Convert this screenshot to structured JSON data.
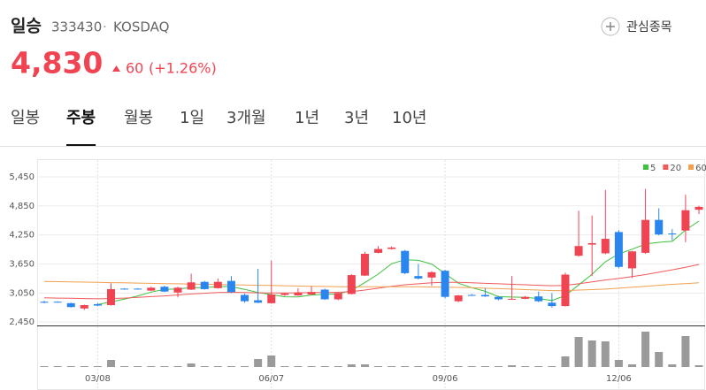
{
  "header": {
    "name": "일승",
    "code": "333430",
    "separator": "·",
    "market": "KOSDAQ",
    "watch": "관심종목",
    "price": "4,830",
    "change": "60",
    "change_pct": "(+1.26%)"
  },
  "tabs": [
    "일봉",
    "주봉",
    "월봉",
    "1일",
    "3개월",
    "1년",
    "3년",
    "10년"
  ],
  "active_tab": 1,
  "chart_data": {
    "type": "candlestick",
    "categories": [
      null,
      null,
      null,
      null,
      "03/08",
      null,
      null,
      null,
      null,
      null,
      null,
      null,
      null,
      null,
      null,
      null,
      null,
      "06/07",
      null,
      null,
      null,
      null,
      null,
      null,
      null,
      null,
      null,
      null,
      null,
      null,
      "09/06",
      null,
      null,
      null,
      null,
      null,
      null,
      null,
      null,
      null,
      null,
      null,
      null,
      "12/06",
      null,
      null,
      null,
      null,
      null,
      null
    ],
    "open": [
      2870,
      2870,
      2840,
      2730,
      2820,
      2800,
      3140,
      3140,
      3100,
      3180,
      3060,
      3120,
      3280,
      3150,
      3300,
      3010,
      2900,
      2840,
      3010,
      3000,
      3020,
      3120,
      2920,
      3030,
      3410,
      3880,
      3960,
      3920,
      3400,
      3370,
      3510,
      2880,
      3010,
      3010,
      2970,
      2920,
      2930,
      2980,
      2850,
      2780,
      3820,
      4050,
      3870,
      4310,
      3560,
      3880,
      4560,
      4280,
      4340,
      4770
    ],
    "high": [
      2890,
      2880,
      2850,
      2810,
      2840,
      3250,
      3150,
      3150,
      3180,
      3200,
      3180,
      3450,
      3300,
      3350,
      3400,
      3040,
      3550,
      3720,
      3060,
      3150,
      3190,
      3140,
      3060,
      3440,
      3900,
      4020,
      4010,
      3940,
      3650,
      3500,
      3530,
      3010,
      3030,
      3150,
      2990,
      3400,
      2990,
      3080,
      3050,
      3470,
      4750,
      4650,
      5180,
      4350,
      3920,
      5200,
      4800,
      4370,
      5080,
      4850
    ],
    "low": [
      2840,
      2850,
      2750,
      2700,
      2780,
      2790,
      3120,
      3120,
      3090,
      3070,
      2960,
      3110,
      3120,
      3140,
      3050,
      2850,
      2840,
      2830,
      2990,
      2990,
      3010,
      2910,
      2900,
      3020,
      3400,
      3870,
      3950,
      3440,
      3330,
      3200,
      2940,
      2860,
      2990,
      2970,
      2900,
      2910,
      2920,
      2860,
      2750,
      2770,
      3800,
      3400,
      3850,
      3560,
      3360,
      3860,
      4240,
      4140,
      4100,
      4680
    ],
    "close": [
      2850,
      2860,
      2760,
      2800,
      2790,
      3130,
      3130,
      3130,
      3160,
      3080,
      3160,
      3270,
      3130,
      3280,
      3070,
      2880,
      2850,
      3020,
      3040,
      3060,
      3070,
      2920,
      3050,
      3420,
      3860,
      3960,
      3990,
      3460,
      3350,
      3480,
      2970,
      3000,
      3000,
      2980,
      2920,
      2930,
      2970,
      2880,
      2780,
      3430,
      4020,
      4080,
      4170,
      3590,
      3910,
      4560,
      4260,
      4270,
      4760,
      4830
    ],
    "volume": [
      1,
      1,
      1,
      1,
      1,
      8,
      1,
      1,
      1,
      1,
      1,
      4,
      1,
      1,
      1,
      1,
      9,
      13,
      1,
      1,
      1,
      1,
      1,
      3,
      3,
      1,
      1,
      1,
      1,
      1,
      1,
      1,
      1,
      1,
      1,
      2,
      1,
      1,
      1,
      12,
      34,
      30,
      29,
      8,
      3,
      40,
      17,
      3,
      35,
      2
    ],
    "up_color": "#f04452",
    "down_color": "#2a86ee",
    "volume_color": "#9a9a9a",
    "series": [
      {
        "name": "5",
        "color": "#3cc23c",
        "values": [
          null,
          null,
          null,
          null,
          2812,
          2868,
          2922,
          2990,
          3068,
          3126,
          3132,
          3160,
          3160,
          3184,
          3182,
          3126,
          3062,
          3018,
          2972,
          2970,
          3008,
          3022,
          3032,
          3104,
          3264,
          3442,
          3656,
          3738,
          3724,
          3648,
          3450,
          3252,
          3160,
          3086,
          2974,
          2966,
          2960,
          2936,
          2896,
          2998,
          3216,
          3438,
          3696,
          3858,
          3954,
          4062,
          4098,
          4118,
          4352,
          4536
        ]
      },
      {
        "name": "20",
        "color": "#f05a5a",
        "values": [
          2950,
          2945,
          2940,
          2935,
          2930,
          2935,
          2945,
          2960,
          2975,
          2990,
          3010,
          3030,
          3045,
          3060,
          3065,
          3060,
          3055,
          3050,
          3050,
          3055,
          3060,
          3060,
          3065,
          3080,
          3110,
          3150,
          3190,
          3220,
          3240,
          3260,
          3270,
          3270,
          3260,
          3250,
          3240,
          3230,
          3220,
          3210,
          3200,
          3210,
          3240,
          3280,
          3320,
          3350,
          3390,
          3430,
          3480,
          3530,
          3580,
          3640
        ]
      },
      {
        "name": "60",
        "color": "#f0a050",
        "values": [
          3290,
          3285,
          3280,
          3275,
          3270,
          3265,
          3260,
          3255,
          3250,
          3245,
          3240,
          3235,
          3230,
          3225,
          3220,
          3215,
          3210,
          3205,
          3200,
          3195,
          3190,
          3185,
          3180,
          3180,
          3180,
          3180,
          3180,
          3180,
          3180,
          3175,
          3170,
          3165,
          3160,
          3150,
          3140,
          3130,
          3120,
          3110,
          3100,
          3100,
          3110,
          3120,
          3130,
          3150,
          3170,
          3190,
          3210,
          3230,
          3245,
          3260
        ]
      }
    ],
    "ylim": [
      2380,
      5760
    ],
    "yticks": [
      {
        "value": 5450,
        "label": "5,450"
      },
      {
        "value": 4850,
        "label": "4,850"
      },
      {
        "value": 4250,
        "label": "4,250"
      },
      {
        "value": 3650,
        "label": "3,650"
      },
      {
        "value": 3050,
        "label": "3,050"
      },
      {
        "value": 2450,
        "label": "2,450"
      }
    ],
    "grid": true
  }
}
